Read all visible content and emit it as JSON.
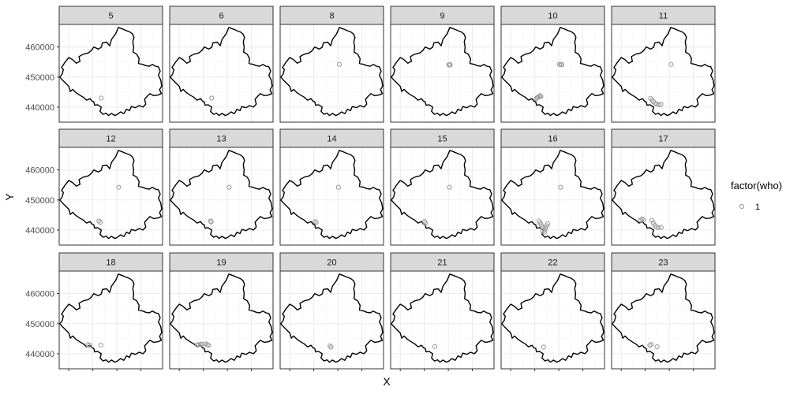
{
  "chart_data": {
    "type": "scatter",
    "facet_variable": "hour",
    "facets": [
      "5",
      "6",
      "8",
      "9",
      "10",
      "11",
      "12",
      "13",
      "14",
      "15",
      "16",
      "17",
      "18",
      "19",
      "20",
      "21",
      "22",
      "23"
    ],
    "xlabel": "X",
    "ylabel": "Y",
    "y_ticks": [
      440000,
      450000,
      460000
    ],
    "y_tick_labels": [
      "440000",
      "450000",
      "460000"
    ],
    "ylim": [
      435000,
      467500
    ],
    "xlim": [
      181800,
      216200
    ],
    "x_tick_values": [
      185000,
      193000,
      201000,
      209000
    ],
    "x_tick_labels": [
      "",
      "",
      "",
      ""
    ],
    "grid": true,
    "legend": {
      "title": "factor(who)",
      "entries": [
        "1"
      ],
      "position": "right"
    },
    "series": [
      {
        "name": "1",
        "points_by_facet": {
          "5": [
            [
              195800,
              443000
            ]
          ],
          "6": [
            [
              195800,
              443000
            ]
          ],
          "8": [
            [
              201500,
              454200
            ]
          ],
          "9": [
            [
              201200,
              454100
            ],
            [
              201600,
              454100
            ],
            [
              201400,
              454000
            ]
          ],
          "10": [
            [
              193800,
              443200
            ],
            [
              194400,
              443500
            ],
            [
              194800,
              443800
            ],
            [
              195000,
              443500
            ],
            [
              193500,
              442800
            ],
            [
              194000,
              443200
            ],
            [
              201200,
              454200
            ],
            [
              201700,
              454200
            ],
            [
              202000,
              454100
            ]
          ],
          "11": [
            [
              194800,
              442900
            ],
            [
              195300,
              442300
            ],
            [
              195700,
              441800
            ],
            [
              196200,
              441300
            ],
            [
              196800,
              441000
            ],
            [
              197600,
              440800
            ],
            [
              198200,
              440900
            ],
            [
              201600,
              454200
            ]
          ],
          "12": [
            [
              195000,
              443000
            ],
            [
              195500,
              442600
            ],
            [
              201600,
              454200
            ]
          ],
          "13": [
            [
              195400,
              443000
            ],
            [
              195600,
              442700
            ],
            [
              201600,
              454200
            ]
          ],
          "14": [
            [
              193400,
              442800
            ],
            [
              193800,
              442500
            ],
            [
              201200,
              454200
            ]
          ],
          "15": [
            [
              193100,
              442800
            ],
            [
              193400,
              442300
            ],
            [
              201400,
              454200
            ]
          ],
          "16": [
            [
              194400,
              443000
            ],
            [
              194800,
              442400
            ],
            [
              195100,
              441800
            ],
            [
              195400,
              441200
            ],
            [
              195800,
              440600
            ],
            [
              196200,
              440000
            ],
            [
              196600,
              440600
            ],
            [
              197000,
              441400
            ],
            [
              197300,
              442100
            ],
            [
              195600,
              439600
            ],
            [
              196300,
              439300
            ],
            [
              201600,
              454200
            ]
          ],
          "17": [
            [
              191400,
              443300
            ],
            [
              191900,
              443700
            ],
            [
              192400,
              443400
            ],
            [
              195200,
              443200
            ],
            [
              195700,
              442400
            ],
            [
              196200,
              441600
            ],
            [
              196700,
              441000
            ],
            [
              197400,
              440800
            ],
            [
              198300,
              440900
            ]
          ],
          "18": [
            [
              191400,
              443000
            ],
            [
              192000,
              442800
            ],
            [
              195700,
              442900
            ]
          ],
          "19": [
            [
              191000,
              443000
            ],
            [
              191500,
              443000
            ],
            [
              192000,
              443100
            ],
            [
              192500,
              443200
            ],
            [
              193800,
              443300
            ],
            [
              194300,
              443000
            ],
            [
              194700,
              442800
            ]
          ],
          "20": [
            [
              198400,
              442600
            ],
            [
              198700,
              442200
            ]
          ],
          "21": [
            [
              196500,
              442400
            ]
          ],
          "22": [
            [
              195900,
              442200
            ]
          ],
          "23": [
            [
              194500,
              442800
            ],
            [
              195000,
              443100
            ],
            [
              196900,
              442300
            ]
          ]
        }
      }
    ],
    "boundary_path": [
      [
        182000,
        450000
      ],
      [
        182800,
        451000
      ],
      [
        183200,
        452500
      ],
      [
        182600,
        453200
      ],
      [
        183800,
        455000
      ],
      [
        185000,
        456500
      ],
      [
        186200,
        455800
      ],
      [
        187500,
        454600
      ],
      [
        188700,
        455200
      ],
      [
        188400,
        456800
      ],
      [
        189800,
        457600
      ],
      [
        191500,
        458000
      ],
      [
        192500,
        458800
      ],
      [
        193300,
        460000
      ],
      [
        194800,
        459300
      ],
      [
        195800,
        459900
      ],
      [
        196200,
        461400
      ],
      [
        197600,
        461600
      ],
      [
        198600,
        460400
      ],
      [
        199200,
        462500
      ],
      [
        200600,
        464400
      ],
      [
        201500,
        466500
      ],
      [
        202800,
        466000
      ],
      [
        204000,
        465500
      ],
      [
        205300,
        465000
      ],
      [
        206200,
        464300
      ],
      [
        206700,
        463200
      ],
      [
        206300,
        461700
      ],
      [
        206600,
        460000
      ],
      [
        206400,
        458300
      ],
      [
        207600,
        457600
      ],
      [
        208400,
        456100
      ],
      [
        208200,
        454500
      ],
      [
        209600,
        454200
      ],
      [
        210600,
        453800
      ],
      [
        211800,
        453600
      ],
      [
        212800,
        454200
      ],
      [
        213800,
        453600
      ],
      [
        214800,
        453400
      ],
      [
        215400,
        452000
      ],
      [
        214800,
        450600
      ],
      [
        215600,
        449000
      ],
      [
        215900,
        447000
      ],
      [
        215200,
        445800
      ],
      [
        215800,
        444500
      ],
      [
        214600,
        444000
      ],
      [
        213200,
        443800
      ],
      [
        212000,
        444500
      ],
      [
        211000,
        443500
      ],
      [
        210200,
        442600
      ],
      [
        210600,
        441000
      ],
      [
        209700,
        440000
      ],
      [
        208400,
        440500
      ],
      [
        207200,
        439800
      ],
      [
        205800,
        440200
      ],
      [
        205200,
        438800
      ],
      [
        204200,
        439300
      ],
      [
        203300,
        437800
      ],
      [
        202200,
        438400
      ],
      [
        201200,
        437600
      ],
      [
        200300,
        437200
      ],
      [
        199200,
        437900
      ],
      [
        198200,
        437200
      ],
      [
        197400,
        438000
      ],
      [
        196400,
        437600
      ],
      [
        195400,
        438600
      ],
      [
        195800,
        440000
      ],
      [
        194600,
        440800
      ],
      [
        193600,
        440600
      ],
      [
        193300,
        441800
      ],
      [
        192700,
        442000
      ],
      [
        192100,
        442800
      ],
      [
        190900,
        442300
      ],
      [
        189800,
        443300
      ],
      [
        188600,
        444000
      ],
      [
        187400,
        444800
      ],
      [
        186300,
        445900
      ],
      [
        185500,
        445200
      ],
      [
        185000,
        446900
      ],
      [
        183800,
        448100
      ],
      [
        182800,
        449100
      ],
      [
        182000,
        450000
      ]
    ]
  }
}
